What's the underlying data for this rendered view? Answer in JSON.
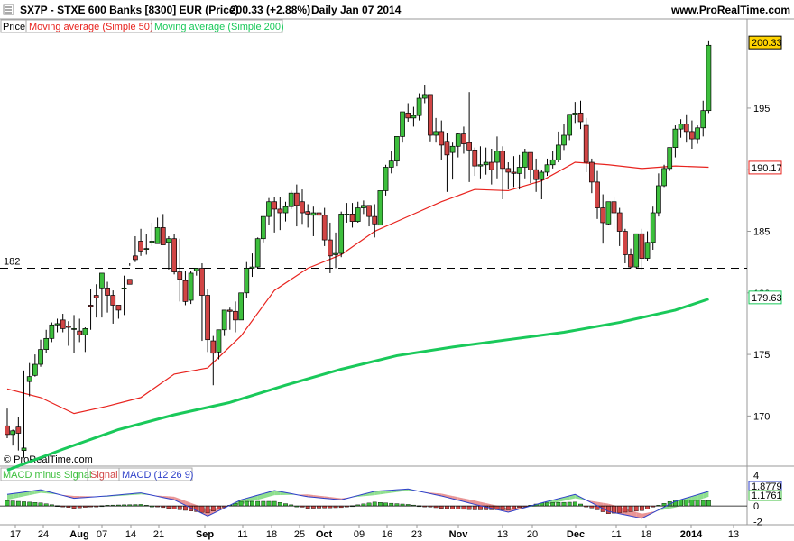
{
  "header": {
    "title": "SX7P - STXE 600 Banks [8300] EUR (Price)",
    "change": "200.33 (+2.88%)",
    "period": "Daily  Jan 07 2014",
    "site": "www.ProRealTime.com"
  },
  "price_legend": [
    "Price",
    "Moving average (Simple 50)",
    "Moving average (Simple 200)"
  ],
  "copyright": "© ProRealTime.com",
  "macd_legend": [
    "MACD minus Signal",
    "Signal",
    "MACD (12 26 9)"
  ],
  "colors": {
    "up": "#3dbf3d",
    "down": "#d14545",
    "ma50": "#e8231e",
    "ma200": "#19c95a",
    "macd_line": "#2d3fc9",
    "signal_fill": "#e99595",
    "macd_fill": "#8fdf8f"
  },
  "chart_data": [
    {
      "type": "candlestick",
      "x_labels": [
        "17",
        "24",
        "Aug",
        "07",
        "14",
        "21",
        "Sep",
        "11",
        "18",
        "25",
        "Oct",
        "09",
        "16",
        "23",
        "Nov",
        "13",
        "20",
        "Dec",
        "11",
        "18",
        "2014",
        "13"
      ],
      "ylim": [
        166,
        201
      ],
      "y_ticks": [
        170,
        175,
        180,
        185,
        190,
        195
      ],
      "reference_line": {
        "value": 182,
        "label": "182"
      },
      "price_labels": {
        "last": "200.33",
        "ma50": "190.17",
        "ma200": "179.63"
      },
      "candles": [
        [
          169.2,
          170.6,
          168.5,
          168.2
        ],
        [
          168.5,
          168.9,
          168.8,
          167.6
        ],
        [
          169.1,
          169.9,
          168.6,
          167.2
        ],
        [
          167.2,
          173.7,
          167.4,
          166.6
        ],
        [
          172.8,
          174.3,
          173.2,
          171.6
        ],
        [
          173.3,
          175.0,
          174.2,
          173.2
        ],
        [
          174.2,
          176.2,
          175.4,
          174.0
        ],
        [
          175.4,
          177.0,
          176.3,
          175.1
        ],
        [
          176.3,
          177.6,
          177.4,
          176.0
        ],
        [
          177.4,
          177.9,
          177.5,
          176.8
        ],
        [
          177.8,
          178.3,
          177.1,
          176.8
        ],
        [
          177.3,
          177.7,
          177.2,
          175.7
        ],
        [
          177.1,
          178.2,
          177.1,
          175.1
        ],
        [
          176.9,
          177.9,
          176.6,
          176.0
        ],
        [
          176.6,
          177.2,
          177.1,
          175.2
        ],
        [
          179.0,
          180.3,
          178.9,
          177.0
        ],
        [
          179.8,
          180.7,
          179.6,
          178.0
        ],
        [
          180.4,
          181.1,
          181.6,
          178.0
        ],
        [
          180.4,
          180.9,
          179.8,
          178.4
        ],
        [
          179.8,
          180.2,
          179.0,
          177.5
        ],
        [
          179.0,
          178.6,
          178.6,
          177.9
        ],
        [
          180.4,
          181.4,
          180.4,
          178.2
        ],
        [
          181.1,
          182.4,
          180.7,
          182.2
        ],
        [
          183.0,
          184.6,
          182.7,
          182.5
        ],
        [
          184.2,
          185.2,
          183.4,
          183.0
        ],
        [
          183.6,
          184.8,
          183.6,
          183.1
        ],
        [
          184.1,
          185.7,
          184.2,
          183.8
        ],
        [
          184.0,
          186.1,
          185.3,
          184.3
        ],
        [
          185.3,
          186.4,
          183.9,
          184.2
        ],
        [
          184.1,
          184.6,
          184.4,
          181.9
        ],
        [
          184.4,
          184.8,
          181.7,
          181.5
        ],
        [
          181.7,
          184.4,
          181.1,
          179.3
        ],
        [
          181.0,
          181.8,
          179.3,
          179.0
        ],
        [
          179.4,
          181.8,
          181.6,
          179.1
        ],
        [
          181.8,
          182.0,
          182.0,
          181.4
        ],
        [
          182.0,
          182.4,
          179.8,
          176.1
        ],
        [
          179.8,
          180.3,
          176.2,
          175.2
        ],
        [
          176.1,
          176.5,
          175.1,
          172.5
        ],
        [
          175.2,
          176.8,
          177.0,
          174.6
        ],
        [
          177.0,
          178.5,
          178.6,
          176.5
        ],
        [
          178.6,
          178.8,
          178.5,
          177.0
        ],
        [
          178.5,
          179.3,
          177.8,
          176.8
        ],
        [
          177.8,
          178.8,
          180.0,
          177.8
        ],
        [
          180.0,
          182.5,
          182.0,
          179.6
        ],
        [
          182.0,
          183.2,
          182.1,
          181.3
        ],
        [
          182.1,
          184.5,
          184.4,
          182.0
        ],
        [
          184.4,
          186.1,
          186.2,
          184.1
        ],
        [
          186.2,
          187.7,
          187.4,
          185.5
        ],
        [
          187.4,
          187.8,
          186.8,
          184.9
        ],
        [
          186.8,
          187.8,
          186.5,
          185.1
        ],
        [
          186.5,
          187.4,
          187.0,
          185.8
        ],
        [
          187.0,
          188.3,
          188.1,
          186.8
        ],
        [
          188.1,
          188.8,
          187.1,
          185.4
        ],
        [
          187.4,
          188.4,
          186.5,
          185.6
        ],
        [
          186.6,
          187.2,
          186.4,
          185.3
        ],
        [
          186.3,
          187.0,
          186.5,
          184.6
        ],
        [
          186.5,
          186.9,
          186.3,
          185.8
        ],
        [
          186.3,
          186.9,
          184.3,
          183.8
        ],
        [
          184.3,
          185.7,
          183.0,
          181.6
        ],
        [
          183.1,
          184.9,
          183.2,
          182.0
        ],
        [
          183.2,
          186.6,
          186.4,
          182.9
        ],
        [
          186.4,
          187.3,
          186.4,
          185.7
        ],
        [
          186.4,
          187.3,
          185.8,
          185.3
        ],
        [
          185.8,
          187.4,
          186.9,
          185.7
        ],
        [
          186.9,
          187.5,
          187.1,
          186.4
        ],
        [
          187.1,
          186.7,
          186.2,
          185.4
        ],
        [
          186.2,
          187.2,
          185.6,
          184.5
        ],
        [
          185.5,
          188.3,
          188.3,
          185.5
        ],
        [
          188.3,
          190.4,
          190.2,
          187.9
        ],
        [
          190.2,
          191.5,
          190.7,
          189.7
        ],
        [
          190.7,
          192.4,
          192.7,
          190.3
        ],
        [
          192.7,
          194.6,
          194.7,
          192.2
        ],
        [
          194.6,
          195.4,
          194.2,
          193.9
        ],
        [
          194.2,
          195.1,
          194.4,
          193.5
        ],
        [
          194.4,
          196.2,
          195.8,
          194.0
        ],
        [
          195.8,
          196.9,
          196.1,
          195.4
        ],
        [
          196.1,
          196.0,
          192.8,
          192.3
        ],
        [
          192.8,
          194.2,
          193.1,
          192.2
        ],
        [
          193.1,
          194.0,
          192.0,
          190.8
        ],
        [
          192.3,
          193.0,
          191.2,
          188.2
        ],
        [
          191.4,
          192.2,
          191.9,
          189.2
        ],
        [
          191.9,
          193.0,
          192.9,
          191.0
        ],
        [
          192.9,
          193.5,
          192.1,
          191.3
        ],
        [
          192.2,
          196.3,
          191.6,
          189.0
        ],
        [
          191.6,
          191.8,
          190.3,
          189.5
        ],
        [
          190.3,
          191.9,
          190.4,
          189.3
        ],
        [
          190.4,
          191.8,
          190.6,
          189.6
        ],
        [
          190.6,
          191.7,
          190.0,
          188.8
        ],
        [
          190.6,
          192.7,
          191.5,
          189.3
        ],
        [
          191.5,
          191.9,
          190.1,
          187.6
        ],
        [
          190.1,
          190.6,
          189.8,
          188.4
        ],
        [
          189.8,
          191.1,
          189.7,
          188.6
        ],
        [
          189.7,
          191.2,
          190.2,
          188.4
        ],
        [
          190.2,
          191.7,
          191.4,
          189.3
        ],
        [
          191.4,
          191.4,
          190.0,
          188.9
        ],
        [
          190.0,
          190.9,
          189.2,
          188.2
        ],
        [
          189.2,
          190.0,
          189.8,
          187.6
        ],
        [
          189.8,
          190.9,
          190.4,
          189.5
        ],
        [
          190.4,
          191.5,
          190.8,
          190.1
        ],
        [
          190.8,
          193.1,
          192.0,
          190.6
        ],
        [
          192.0,
          193.7,
          192.8,
          191.6
        ],
        [
          192.8,
          194.1,
          194.5,
          192.4
        ],
        [
          194.5,
          195.5,
          194.6,
          193.8
        ],
        [
          194.6,
          195.6,
          193.9,
          193.3
        ],
        [
          193.6,
          194.2,
          190.6,
          189.8
        ],
        [
          190.6,
          190.9,
          189.0,
          188.1
        ],
        [
          189.0,
          189.9,
          186.9,
          186.0
        ],
        [
          186.9,
          188.0,
          185.7,
          184.0
        ],
        [
          185.6,
          186.6,
          187.4,
          185.5
        ],
        [
          187.4,
          187.8,
          186.5,
          185.2
        ],
        [
          186.5,
          186.9,
          185.0,
          183.8
        ],
        [
          185.0,
          185.2,
          183.1,
          182.4
        ],
        [
          183.1,
          183.6,
          182.1,
          182.0
        ],
        [
          182.1,
          184.8,
          184.8,
          182.0
        ],
        [
          184.8,
          185.2,
          182.8,
          181.9
        ],
        [
          182.8,
          185.0,
          184.1,
          182.6
        ],
        [
          184.1,
          187.0,
          186.5,
          183.5
        ],
        [
          186.5,
          189.7,
          188.7,
          186.2
        ],
        [
          188.7,
          190.4,
          190.1,
          188.6
        ],
        [
          190.1,
          191.5,
          191.8,
          189.9
        ],
        [
          191.8,
          193.6,
          193.3,
          191.0
        ],
        [
          193.3,
          194.1,
          193.7,
          192.6
        ],
        [
          193.7,
          194.5,
          193.1,
          192.2
        ],
        [
          193.1,
          194.0,
          192.5,
          191.7
        ],
        [
          192.5,
          193.6,
          193.4,
          192.1
        ],
        [
          193.4,
          195.6,
          194.8,
          192.7
        ],
        [
          194.8,
          200.5,
          200.1,
          194.6
        ]
      ],
      "series": [
        {
          "name": "Moving average (Simple 50)",
          "x": [
            0,
            6,
            12,
            18,
            24,
            30,
            36,
            42,
            48,
            54,
            60,
            66,
            72,
            78,
            84,
            90,
            96,
            102,
            108,
            114,
            120,
            126
          ],
          "values": [
            172.2,
            171.5,
            170.2,
            170.8,
            171.5,
            173.4,
            173.9,
            176.5,
            180.2,
            182.0,
            183.1,
            185.0,
            186.2,
            187.4,
            188.4,
            188.3,
            189.1,
            190.6,
            190.4,
            190.1,
            190.3,
            190.2
          ]
        },
        {
          "name": "Moving average (Simple 200)",
          "x": [
            0,
            10,
            20,
            30,
            40,
            50,
            60,
            70,
            80,
            90,
            100,
            110,
            120,
            126
          ],
          "values": [
            165.6,
            167.3,
            168.9,
            170.1,
            171.1,
            172.5,
            173.8,
            174.9,
            175.6,
            176.2,
            176.8,
            177.6,
            178.6,
            179.5
          ]
        }
      ]
    },
    {
      "type": "bar",
      "title": "MACD (12 26 9)",
      "ylim": [
        -2.2,
        4.8
      ],
      "y_ticks": [
        "4",
        "0",
        "-2"
      ],
      "value_labels": [
        "1.8779",
        "1.1761"
      ],
      "series": [
        {
          "name": "MACD (12 26 9)",
          "x": [
            0,
            6,
            12,
            18,
            24,
            30,
            36,
            42,
            48,
            54,
            60,
            66,
            72,
            78,
            84,
            90,
            96,
            102,
            108,
            114,
            120,
            126
          ],
          "values": [
            1.5,
            2.1,
            1.0,
            1.3,
            1.7,
            0.8,
            -1.3,
            0.8,
            2.0,
            1.2,
            0.8,
            1.9,
            2.2,
            1.3,
            0.2,
            -0.8,
            0.4,
            1.5,
            -0.7,
            -1.6,
            0.6,
            1.9
          ]
        },
        {
          "name": "Signal",
          "x": [
            0,
            6,
            12,
            18,
            24,
            30,
            36,
            42,
            48,
            54,
            60,
            66,
            72,
            78,
            84,
            90,
            96,
            102,
            108,
            114,
            120,
            126
          ],
          "values": [
            0.8,
            1.7,
            1.3,
            1.2,
            1.5,
            1.2,
            -0.4,
            0.2,
            1.4,
            1.5,
            1.0,
            1.4,
            2.0,
            1.6,
            0.7,
            -0.3,
            0.0,
            1.0,
            0.3,
            -1.0,
            -0.2,
            1.2
          ]
        }
      ]
    }
  ]
}
